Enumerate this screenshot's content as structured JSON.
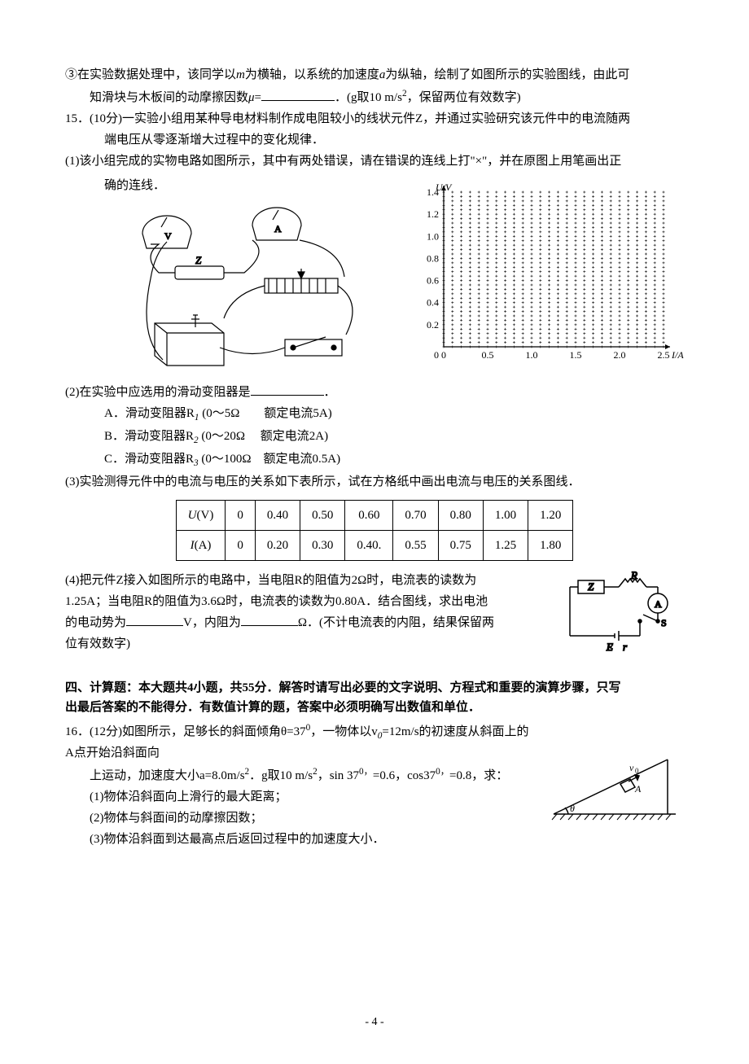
{
  "q14_part3": {
    "text_a": "③在实验数据处理中，该同学以",
    "text_b": "为横轴，以系统的加速度",
    "text_c": "为纵轴，绘制了如图所示的实验图线，由此可",
    "line2_a": "知滑块与木板间的动摩擦因数",
    "mu": "μ",
    "eq": "=",
    "blank_suffix": "．(g取10 m/s",
    "blank_suffix2": "，保留两位有效数字)",
    "m_var": "m",
    "a_var": "a",
    "sq": "2"
  },
  "q15": {
    "stem_a": "15．(10分)一实验小组用某种导电材料制作成电阻较小的线状元件Z，并通过实验研究该元件中的电流随两",
    "stem_b": "端电压从零逐渐增大过程中的变化规律．",
    "p1_a": "(1)该小组完成的实物电路如图所示，其中有两处错误，请在错误的连线上打\"×\"，并在原图上用笔画出正",
    "p1_b": "确的连线．",
    "p2": "(2)在实验中应选用的滑动变阻器是",
    "p2_period": "．",
    "optA": "A．滑动变阻器R",
    "optA_sub": "1",
    "optA_paren": " (0～5Ω　　额定电流5A)",
    "optB": "B．滑动变阻器R",
    "optB_sub": "2",
    "optB_paren": " (0～20Ω　 额定电流2A)",
    "optC": "C．滑动变阻器R",
    "optC_sub": "3",
    "optC_paren": " (0～100Ω　额定电流0.5A)",
    "p3": "(3)实验测得元件中的电流与电压的关系如下表所示，试在方格纸中画出电流与电压的关系图线．",
    "table": {
      "head_u": "U",
      "head_u_unit": "(V)",
      "head_i": "I",
      "head_i_unit": "(A)",
      "u_vals": [
        "0",
        "0.40",
        "0.50",
        "0.60",
        "0.70",
        "0.80",
        "1.00",
        "1.20"
      ],
      "i_vals": [
        "0",
        "0.20",
        "0.30",
        "0.40.",
        "0.55",
        "0.75",
        "1.25",
        "1.80"
      ]
    },
    "p4_l1": "(4)把元件Z接入如图所示的电路中，当电阻R的阻值为2Ω时，电流表的读数为",
    "p4_l2": "1.25A；当电阻R的阻值为3.6Ω时，电流表的读数为0.80A．结合图线，求出电池",
    "p4_l3a": "的电动势为",
    "p4_l3b": "V，内阻为",
    "p4_l3c": "Ω．(不计电流表的内阻，结果保留两",
    "p4_l4": "位有效数字)"
  },
  "chart": {
    "y_label": "U/V",
    "x_label": "I/A",
    "y_ticks": [
      "0.2",
      "0.4",
      "0.6",
      "0.8",
      "1.0",
      "1.2",
      "1.4"
    ],
    "x_ticks": [
      "0",
      "0.5",
      "1.0",
      "1.5",
      "2.0",
      "2.5"
    ],
    "grid_color": "#000000",
    "background": "#ffffff",
    "major_x_step": 5,
    "major_y_step": 5,
    "x_max_units": 25,
    "y_max_units": 35
  },
  "circuit_small": {
    "labels": {
      "Z": "Z",
      "R": "R",
      "A": "A",
      "S": "S",
      "E": "E",
      "r": "r"
    }
  },
  "section4": {
    "heading_l1": "四、计算题：本大题共4小题，共55分．解答时请写出必要的文字说明、方程式和重要的演算步骤，只写",
    "heading_l2": "出最后答案的不能得分．有数值计算的题，答案中必须明确写出数值和单位．"
  },
  "q16": {
    "stem_a": "16．(12分)如图所示，足够长的斜面倾角θ=37",
    "deg1": "0",
    "stem_b": "，一物体以v",
    "sub0": "0",
    "stem_c": "=12m/s的初速度从斜面上的A点开始沿斜面向",
    "stem_d": "上运动，加速度大小a=8.0m/s",
    "sq": "2",
    "stem_e": "．g取10 m/s",
    "stem_f": "，sin 37",
    "deg2": "0，",
    "stem_g": "=0.6，cos37",
    "deg3": "0，",
    "stem_h": "=0.8，求：",
    "p1": "(1)物体沿斜面向上滑行的最大距离；",
    "p2": "(2)物体与斜面间的动摩擦因数；",
    "p3": "(3)物体沿斜面到达最高点后返回过程中的加速度大小．",
    "fig": {
      "v0": "v",
      "sub0": "0",
      "A": "A",
      "theta": "θ"
    }
  },
  "pagenum": "- 4 -"
}
